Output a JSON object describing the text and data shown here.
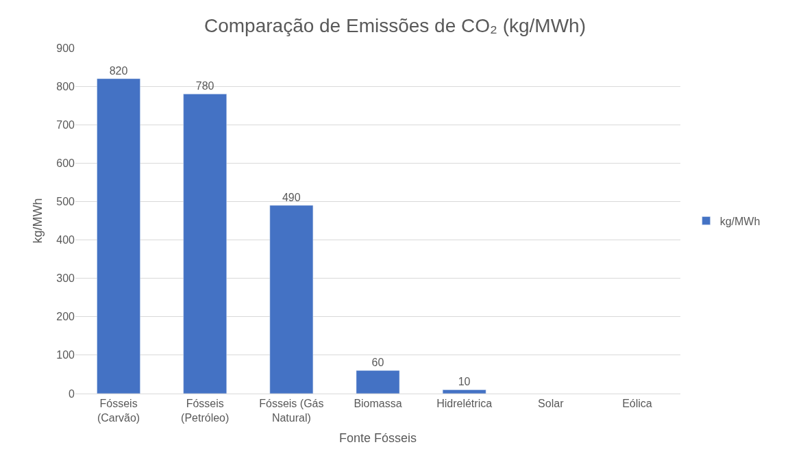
{
  "chart_data": {
    "type": "bar",
    "title": "Comparação de Emissões de CO₂ (kg/MWh)",
    "xlabel": "Fonte Fósseis",
    "ylabel": "kg/MWh",
    "categories": [
      "Fósseis (Carvão)",
      "Fósseis (Petróleo)",
      "Fósseis (Gás Natural)",
      "Biomassa",
      "Hidrelétrica",
      "Solar",
      "Eólica"
    ],
    "series": [
      {
        "name": "kg/MWh",
        "color": "#4472c4",
        "values": [
          820,
          780,
          490,
          60,
          10,
          null,
          null
        ]
      }
    ],
    "ylim": [
      0,
      900
    ],
    "yticks": [
      0,
      100,
      200,
      300,
      400,
      500,
      600,
      700,
      800,
      900
    ],
    "grid": "y",
    "legend": "right",
    "data_labels": true
  }
}
